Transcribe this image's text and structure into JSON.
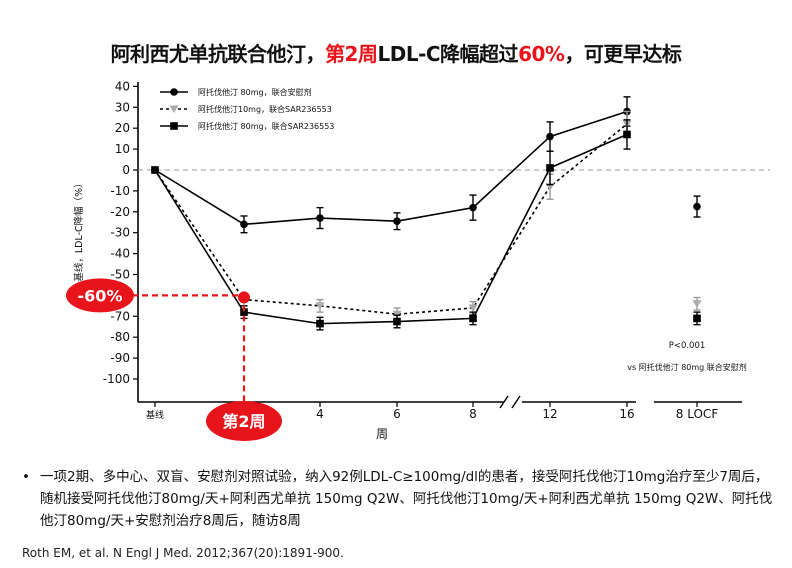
{
  "title": {
    "part1": "阿利西尤单抗联合他汀，",
    "highlight1": "第2周",
    "part2": "LDL-C降幅超过",
    "highlight2": "60%",
    "part3": "，可更早达标"
  },
  "chart_data": {
    "type": "line",
    "ylabel": "基线，LDL-C降幅（%）",
    "xlabel": "周",
    "ylim": [
      -100,
      40
    ],
    "yticks": [
      40,
      30,
      20,
      10,
      0,
      -10,
      -20,
      -30,
      -40,
      -50,
      -60,
      -70,
      -80,
      -90,
      -100
    ],
    "xticks": [
      {
        "label": "基线",
        "x": 0
      },
      {
        "label": "4",
        "x": 4
      },
      {
        "label": "6",
        "x": 6
      },
      {
        "label": "8",
        "x": 8
      },
      {
        "label": "12",
        "x": 12
      },
      {
        "label": "16",
        "x": 16
      },
      {
        "label": "8 LOCF",
        "x": "LOCF"
      }
    ],
    "series": [
      {
        "name": "阿托伐他汀 80mg，联合安慰剂",
        "marker": "circle",
        "line": "solid",
        "color": "#000000",
        "points": [
          {
            "x": 0,
            "y": 0,
            "err": 0
          },
          {
            "x": 2,
            "y": -26,
            "err": 4
          },
          {
            "x": 4,
            "y": -23,
            "err": 5
          },
          {
            "x": 6,
            "y": -24.5,
            "err": 4
          },
          {
            "x": 8,
            "y": -18,
            "err": 6
          },
          {
            "x": 12,
            "y": 16,
            "err": 7
          },
          {
            "x": 16,
            "y": 28,
            "err": 7
          }
        ],
        "locf": {
          "y": -17.5,
          "err": 5
        }
      },
      {
        "name": "阿托伐他汀10mg，联合SAR236553",
        "marker": "triangle-down",
        "line": "dotted",
        "color": "#aaaaaa",
        "points": [
          {
            "x": 0,
            "y": 0,
            "err": 0
          },
          {
            "x": 2,
            "y": -62,
            "err": 3
          },
          {
            "x": 4,
            "y": -65,
            "err": 3
          },
          {
            "x": 6,
            "y": -69,
            "err": 3
          },
          {
            "x": 8,
            "y": -66,
            "err": 3
          },
          {
            "x": 12,
            "y": -8,
            "err": 6
          },
          {
            "x": 16,
            "y": 22,
            "err": 6
          }
        ],
        "locf": {
          "y": -64,
          "err": 3
        }
      },
      {
        "name": "阿托伐他汀 80mg，联合SAR236553",
        "marker": "square",
        "line": "solid",
        "color": "#000000",
        "points": [
          {
            "x": 0,
            "y": 0,
            "err": 0
          },
          {
            "x": 2,
            "y": -68,
            "err": 3
          },
          {
            "x": 4,
            "y": -73.5,
            "err": 3
          },
          {
            "x": 6,
            "y": -72.5,
            "err": 3
          },
          {
            "x": 8,
            "y": -71,
            "err": 3
          },
          {
            "x": 12,
            "y": 1,
            "err": 8
          },
          {
            "x": 16,
            "y": 17,
            "err": 7
          }
        ],
        "locf": {
          "y": -71,
          "err": 3
        }
      }
    ],
    "annotations": {
      "percent_label": "-60%",
      "week_label": "第2周",
      "pvalue": "P<0.001",
      "vs_text": "vs 阿托伐他汀 80mg 联合安慰剂"
    },
    "reference_line_y": 0,
    "axis_break": true,
    "colors": {
      "accent": "#e8141c",
      "line": "#000000",
      "gray": "#aaaaaa"
    }
  },
  "description": "一项2期、多中心、双盲、安慰剂对照试验，纳入92例LDL-C≥100mg/dl的患者，接受阿托伐他汀10mg治疗至少7周后，随机接受阿托伐他汀80mg/天+阿利西尤单抗 150mg Q2W、阿托伐他汀10mg/天+阿利西尤单抗 150mg Q2W、阿托伐他汀80mg/天+安慰剂治疗8周后，随访8周",
  "bullet": "•",
  "citation": "Roth EM, et al. N Engl J Med. 2012;367(20):1891-900."
}
